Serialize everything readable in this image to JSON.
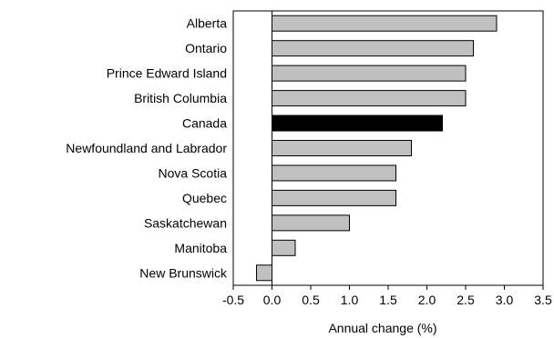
{
  "chart_data": {
    "type": "bar",
    "orientation": "horizontal",
    "title": "",
    "xlabel": "Annual change (%)",
    "ylabel": "",
    "categories": [
      "Alberta",
      "Ontario",
      "Prince Edward Island",
      "British Columbia",
      "Canada",
      "Newfoundland and Labrador",
      "Nova Scotia",
      "Quebec",
      "Saskatchewan",
      "Manitoba",
      "New Brunswick"
    ],
    "values": [
      2.9,
      2.6,
      2.5,
      2.5,
      2.2,
      1.8,
      1.6,
      1.6,
      1.0,
      0.3,
      -0.2
    ],
    "xlim": [
      -0.5,
      3.5
    ],
    "xticks": [
      "-0.5",
      "0.0",
      "0.5",
      "1.0",
      "1.5",
      "2.0",
      "2.5",
      "3.0",
      "3.5"
    ],
    "grid": false,
    "legend": "none",
    "highlight_category": "Canada",
    "colors": {
      "bar": "#c0c0c0",
      "highlight": "#000000",
      "stroke": "#000000"
    }
  }
}
